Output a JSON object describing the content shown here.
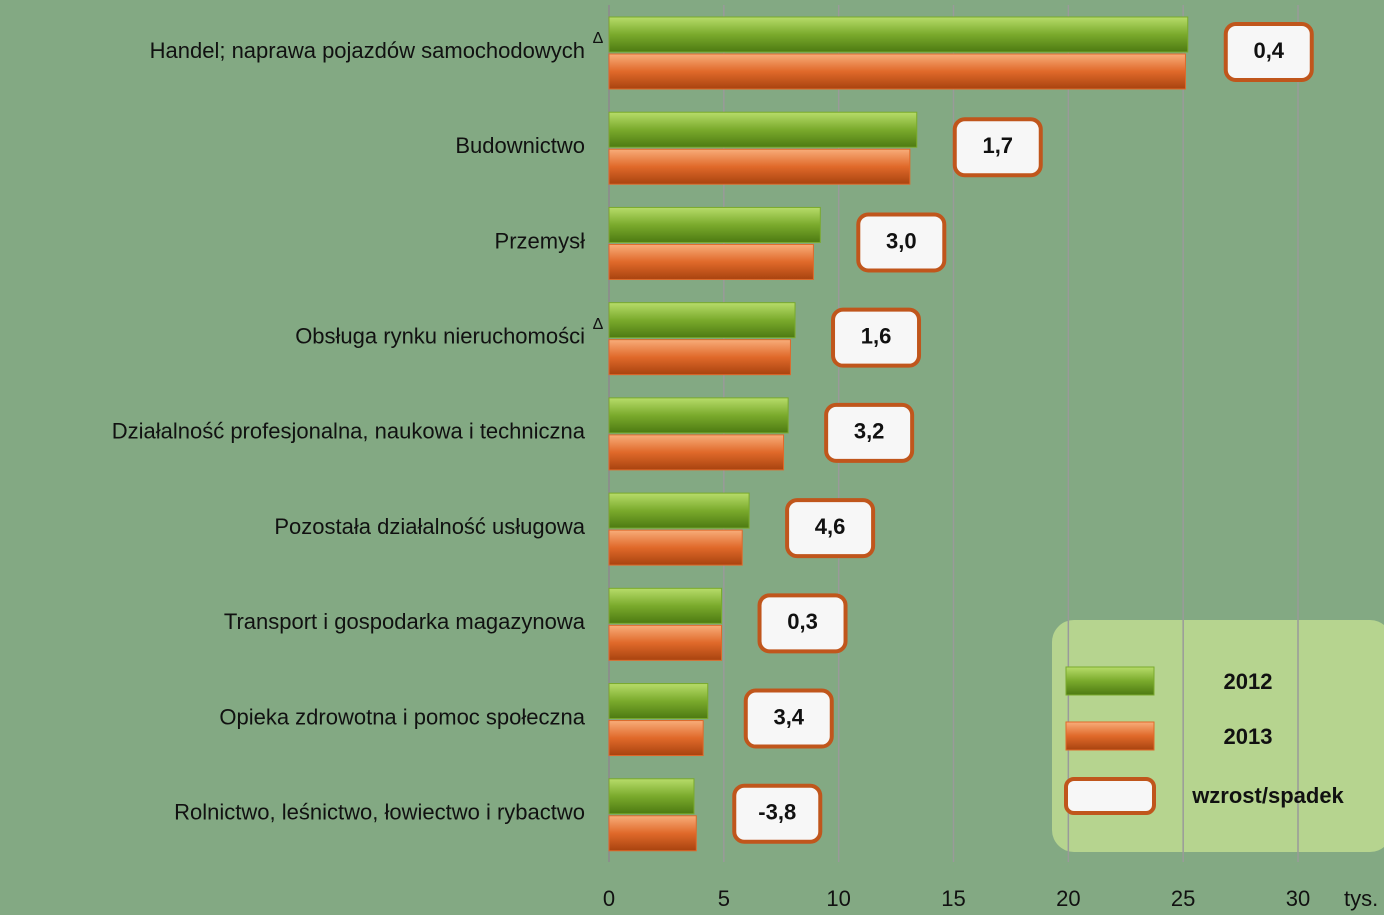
{
  "chart_data": {
    "type": "hbar",
    "categories": [
      "Handel; naprawa pojazdów samochodowych",
      "Budownictwo",
      "Przemysł",
      "Obsługa rynku nieruchomości",
      "Działalność profesjonalna, naukowa i techniczna",
      "Pozostała działalność usługowa",
      "Transport i gospodarka magazynowa",
      "Opieka zdrowotna i pomoc społeczna",
      "Rolnictwo, leśnictwo, łowiectwo i rybactwo"
    ],
    "series": [
      {
        "name": "2012",
        "color": "#7aaa2c",
        "values": [
          25.2,
          13.4,
          9.2,
          8.1,
          7.8,
          6.1,
          4.9,
          4.3,
          3.7
        ]
      },
      {
        "name": "2013",
        "color": "#e0692a",
        "values": [
          25.1,
          13.1,
          8.9,
          7.9,
          7.6,
          5.8,
          4.9,
          4.1,
          3.8
        ]
      }
    ],
    "change_labels": [
      "0,4",
      "1,7",
      "3,0",
      "1,6",
      "3,2",
      "4,6",
      "0,3",
      "3,4",
      "-3,8"
    ],
    "change_legend": "wzrost/spadek",
    "markers": [
      "Δ",
      null,
      null,
      "Δ",
      null,
      null,
      null,
      null,
      null
    ],
    "x_unit": "tys.",
    "xlim": [
      0,
      30
    ],
    "xticks": [
      0,
      5,
      10,
      15,
      20,
      25,
      30
    ],
    "grid": true
  }
}
